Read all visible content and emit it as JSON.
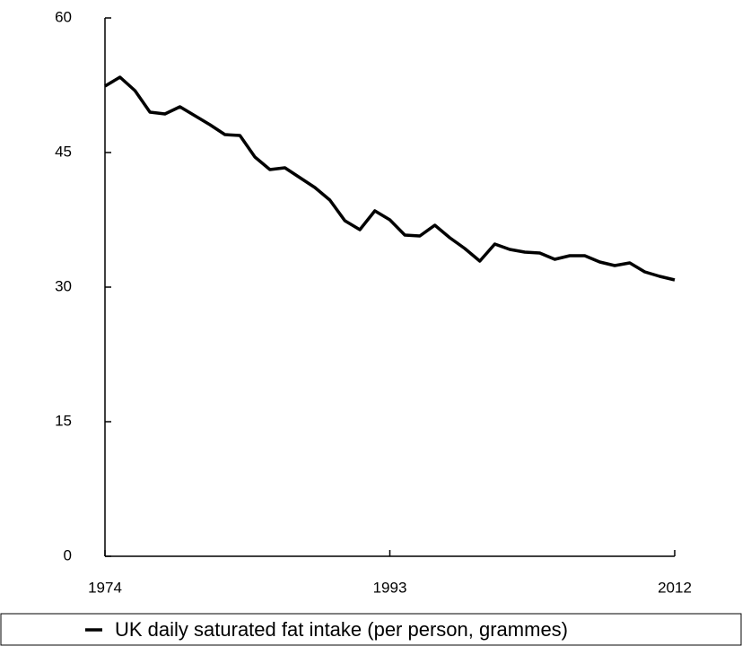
{
  "chart_data": {
    "type": "line",
    "x": [
      1974,
      1975,
      1976,
      1977,
      1978,
      1979,
      1980,
      1981,
      1982,
      1983,
      1984,
      1985,
      1986,
      1987,
      1988,
      1989,
      1990,
      1991,
      1992,
      1993,
      1994,
      1995,
      1996,
      1997,
      1998,
      1999,
      2000,
      2001,
      2002,
      2003,
      2004,
      2005,
      2006,
      2007,
      2008,
      2009,
      2010,
      2011,
      2012
    ],
    "series": [
      {
        "name": "UK daily saturated fat intake (per person, grammes)",
        "color": "#000000",
        "values": [
          52.4,
          53.4,
          51.9,
          49.5,
          49.3,
          50.1,
          49.1,
          48.1,
          47.0,
          46.9,
          44.5,
          43.1,
          43.3,
          42.2,
          41.1,
          39.7,
          37.4,
          36.4,
          38.5,
          37.5,
          35.8,
          35.7,
          36.9,
          35.5,
          34.3,
          32.9,
          34.8,
          34.2,
          33.9,
          33.8,
          33.1,
          33.5,
          33.5,
          32.8,
          32.4,
          32.7,
          31.7,
          31.2,
          30.8
        ]
      }
    ],
    "xlim": [
      1974,
      2012
    ],
    "xticks": [
      1974,
      1993,
      2012
    ],
    "ylim": [
      0,
      60
    ],
    "yticks": [
      0,
      15,
      30,
      45,
      60
    ],
    "legend": "bottom"
  }
}
